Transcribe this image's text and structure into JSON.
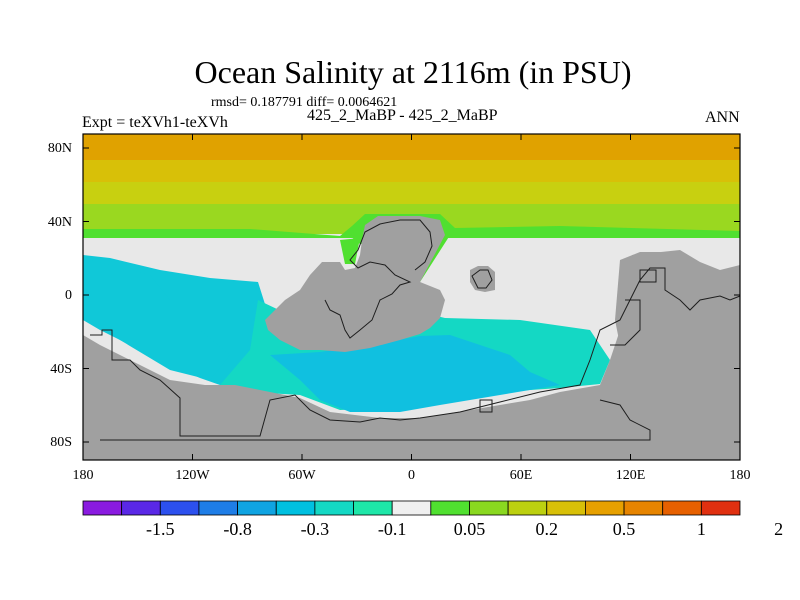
{
  "title": "Ocean Salinity at 2116m (in PSU)",
  "stats": "rmsd= 0.187791 diff= 0.0064621",
  "experiment": "Expt = teXVh1-teXVh",
  "period": "425_2_MaBP - 425_2_MaBP",
  "season": "ANN",
  "map": {
    "lat_ticks": [
      {
        "value": 80,
        "label": "80N"
      },
      {
        "value": 40,
        "label": "40N"
      },
      {
        "value": 0,
        "label": "0"
      },
      {
        "value": -40,
        "label": "40S"
      },
      {
        "value": -80,
        "label": "80S"
      }
    ],
    "lon_ticks": [
      {
        "value": -180,
        "label": "180"
      },
      {
        "value": -120,
        "label": "120W"
      },
      {
        "value": -60,
        "label": "60W"
      },
      {
        "value": 0,
        "label": "0"
      },
      {
        "value": 60,
        "label": "60E"
      },
      {
        "value": 120,
        "label": "120E"
      },
      {
        "value": 180,
        "label": "180"
      }
    ],
    "land_color": "#a0a0a0",
    "neutral_color": "#e8e8e8"
  },
  "colorbar": {
    "colors": [
      "#8a1be0",
      "#5a28e6",
      "#2c50ee",
      "#1e7de6",
      "#10a4e2",
      "#00c0e0",
      "#14d8c4",
      "#1ee6a8",
      "#f0f0f0",
      "#50e030",
      "#8ad820",
      "#bcd010",
      "#d8c008",
      "#e6a000",
      "#e68400",
      "#e66000",
      "#e03010"
    ],
    "labels": [
      "-1.5",
      "-0.8",
      "-0.3",
      "-0.1",
      "0.05",
      "0.2",
      "0.5",
      "1",
      "2"
    ]
  }
}
